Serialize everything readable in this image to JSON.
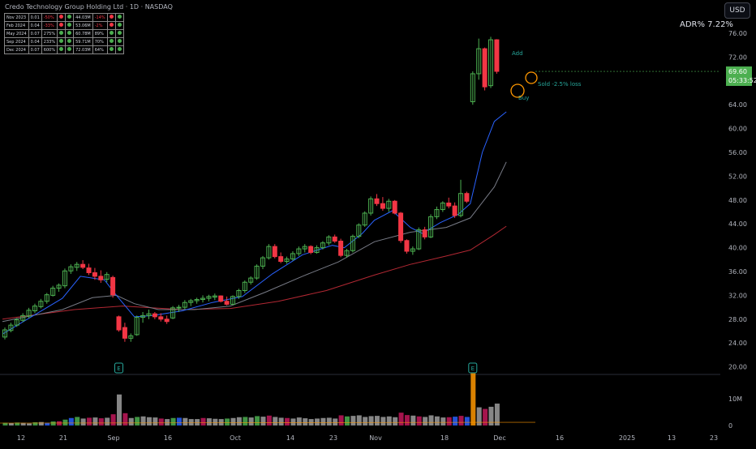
{
  "header": {
    "title": "Credo Technology Group Holding Ltd · 1D · NASDAQ",
    "currency_button": "USD",
    "adr_label": "ADR% 7.22%",
    "price_badge": {
      "price": "69.60",
      "countdown": "05:33:52"
    }
  },
  "earnings_table": [
    {
      "period": "Nov 2023",
      "eps": "0.01",
      "eps_chg": "-50%",
      "eps_dot": "red",
      "eps_dot2": "green",
      "rev": "44.03M",
      "rev_chg": "-14%",
      "rev_dot": "red",
      "rev_dot2": "green"
    },
    {
      "period": "Feb 2024",
      "eps": "0.04",
      "eps_chg": "-33%",
      "eps_dot": "red",
      "eps_dot2": "green",
      "rev": "53.06M",
      "rev_chg": "-2%",
      "rev_dot": "red",
      "rev_dot2": "green"
    },
    {
      "period": "May 2024",
      "eps": "0.07",
      "eps_chg": "275%",
      "eps_dot": "green",
      "eps_dot2": "green",
      "rev": "60.78M",
      "rev_chg": "89%",
      "rev_dot": "green",
      "rev_dot2": "green"
    },
    {
      "period": "Sep 2024",
      "eps": "0.04",
      "eps_chg": "233%",
      "eps_dot": "green",
      "eps_dot2": "green",
      "rev": "59.71M",
      "rev_chg": "70%",
      "rev_dot": "green",
      "rev_dot2": "green"
    },
    {
      "period": "Dec 2024",
      "eps": "0.07",
      "eps_chg": "600%",
      "eps_dot": "green",
      "eps_dot2": "green",
      "rev": "72.03M",
      "rev_chg": "64%",
      "rev_dot": "green",
      "rev_dot2": "green"
    }
  ],
  "annotations": {
    "add": "Add",
    "buy": "Buy",
    "sold": "Sold -2.5% loss",
    "earnings_marker": "E"
  },
  "colors": {
    "up": "#4caf50",
    "down": "#f23645",
    "ma_fast": "#2962ff",
    "ma_mid": "#787b86",
    "ma_slow": "#b22833",
    "note": "#26a69a",
    "circle": "#ff9800"
  },
  "chart_data": {
    "type": "candlestick",
    "y_axis": {
      "ticks": [
        "76.00",
        "72.00",
        "68.00",
        "64.00",
        "60.00",
        "56.00",
        "52.00",
        "48.00",
        "44.00",
        "40.00",
        "36.00",
        "32.00",
        "28.00",
        "24.00",
        "20.00"
      ],
      "range": [
        20,
        77
      ]
    },
    "volume_axis": {
      "ticks": [
        "10M",
        "0"
      ]
    },
    "x_axis": {
      "ticks": [
        "12",
        "21",
        "Sep",
        "16",
        "Oct",
        "14",
        "23",
        "Nov",
        "18",
        "Dec",
        "16",
        "2025",
        "13",
        "23"
      ]
    },
    "candles": [
      [
        25.0,
        26.6,
        24.6,
        26.2
      ],
      [
        26.1,
        27.4,
        25.8,
        27.0
      ],
      [
        27.0,
        28.2,
        26.7,
        27.9
      ],
      [
        27.8,
        29.0,
        27.5,
        28.6
      ],
      [
        28.5,
        29.9,
        28.2,
        29.5
      ],
      [
        29.4,
        30.6,
        29.0,
        30.2
      ],
      [
        30.1,
        31.4,
        29.8,
        31.0
      ],
      [
        31.0,
        32.4,
        30.6,
        32.1
      ],
      [
        32.0,
        33.6,
        31.8,
        33.2
      ],
      [
        33.2,
        34.0,
        32.6,
        33.7
      ],
      [
        33.6,
        36.5,
        33.2,
        36.1
      ],
      [
        36.1,
        37.2,
        35.6,
        36.8
      ],
      [
        36.7,
        37.6,
        36.1,
        37.2
      ],
      [
        37.2,
        37.9,
        36.4,
        36.7
      ],
      [
        36.6,
        37.3,
        35.4,
        35.8
      ],
      [
        35.8,
        36.6,
        34.6,
        35.2
      ],
      [
        35.2,
        36.2,
        34.1,
        34.6
      ],
      [
        34.7,
        35.9,
        34.2,
        35.5
      ],
      [
        35.0,
        35.3,
        31.6,
        32.1
      ],
      [
        28.4,
        28.6,
        25.9,
        26.2
      ],
      [
        26.6,
        27.4,
        24.2,
        24.8
      ],
      [
        24.8,
        25.6,
        24.2,
        25.2
      ],
      [
        25.4,
        28.6,
        25.2,
        28.3
      ],
      [
        28.3,
        29.2,
        27.4,
        28.6
      ],
      [
        28.6,
        29.6,
        28.0,
        28.9
      ],
      [
        28.9,
        29.2,
        28.0,
        28.4
      ],
      [
        28.4,
        29.0,
        27.6,
        28.0
      ],
      [
        28.0,
        28.6,
        27.2,
        27.6
      ],
      [
        28.2,
        30.2,
        28.0,
        29.9
      ],
      [
        29.9,
        30.4,
        29.2,
        30.0
      ],
      [
        30.0,
        31.2,
        29.7,
        30.8
      ],
      [
        30.8,
        31.4,
        30.2,
        31.1
      ],
      [
        31.1,
        31.6,
        30.6,
        31.3
      ],
      [
        31.3,
        32.0,
        30.8,
        31.5
      ],
      [
        31.5,
        32.1,
        31.0,
        31.8
      ],
      [
        31.7,
        32.3,
        31.2,
        31.9
      ],
      [
        31.9,
        32.0,
        30.8,
        31.0
      ],
      [
        31.0,
        31.8,
        30.3,
        30.5
      ],
      [
        30.5,
        32.0,
        30.4,
        31.8
      ],
      [
        31.8,
        33.1,
        31.4,
        32.8
      ],
      [
        32.8,
        34.5,
        32.4,
        34.2
      ],
      [
        34.2,
        35.2,
        33.8,
        34.9
      ],
      [
        34.9,
        37.2,
        34.6,
        36.9
      ],
      [
        36.9,
        38.6,
        36.4,
        38.3
      ],
      [
        38.3,
        40.6,
        38.0,
        40.2
      ],
      [
        40.2,
        40.6,
        38.2,
        38.5
      ],
      [
        38.5,
        39.2,
        37.4,
        37.7
      ],
      [
        37.7,
        38.5,
        37.3,
        38.1
      ],
      [
        38.1,
        39.4,
        37.8,
        39.0
      ],
      [
        39.0,
        40.2,
        38.6,
        39.8
      ],
      [
        39.8,
        40.6,
        39.2,
        40.2
      ],
      [
        40.2,
        40.4,
        38.9,
        39.2
      ],
      [
        39.2,
        40.4,
        39.0,
        40.0
      ],
      [
        40.0,
        41.1,
        39.7,
        40.8
      ],
      [
        40.8,
        42.1,
        40.4,
        41.8
      ],
      [
        41.8,
        42.2,
        40.8,
        41.1
      ],
      [
        41.1,
        41.5,
        38.4,
        38.7
      ],
      [
        38.7,
        39.8,
        38.3,
        39.5
      ],
      [
        39.5,
        42.2,
        39.2,
        41.9
      ],
      [
        41.9,
        44.1,
        41.6,
        43.8
      ],
      [
        43.8,
        46.1,
        43.5,
        45.8
      ],
      [
        45.8,
        48.6,
        45.4,
        48.2
      ],
      [
        48.2,
        49.0,
        47.0,
        47.4
      ],
      [
        47.4,
        48.5,
        46.2,
        46.6
      ],
      [
        46.6,
        48.2,
        46.0,
        47.8
      ],
      [
        47.8,
        48.0,
        45.6,
        45.8
      ],
      [
        45.8,
        46.0,
        40.8,
        41.2
      ],
      [
        41.2,
        41.4,
        39.0,
        39.4
      ],
      [
        39.4,
        40.2,
        38.8,
        39.8
      ],
      [
        39.8,
        43.4,
        39.6,
        43.0
      ],
      [
        43.0,
        43.5,
        41.4,
        41.8
      ],
      [
        41.8,
        45.6,
        41.6,
        45.2
      ],
      [
        45.2,
        46.9,
        44.8,
        46.4
      ],
      [
        46.4,
        47.8,
        46.0,
        47.5
      ],
      [
        47.5,
        48.4,
        46.6,
        47.0
      ],
      [
        47.0,
        47.6,
        45.0,
        45.4
      ],
      [
        45.4,
        51.4,
        45.1,
        49.1
      ],
      [
        49.1,
        49.4,
        47.5,
        47.8
      ],
      [
        64.5,
        69.6,
        64.0,
        69.2
      ],
      [
        69.2,
        75.1,
        68.2,
        73.4
      ],
      [
        73.4,
        73.6,
        66.4,
        67.0
      ],
      [
        67.2,
        75.4,
        66.8,
        74.9
      ],
      [
        74.9,
        75.0,
        69.2,
        69.6
      ]
    ],
    "volume": [
      [
        1.0,
        "green"
      ],
      [
        0.9,
        "gray"
      ],
      [
        1.1,
        "green"
      ],
      [
        1.0,
        "gray"
      ],
      [
        0.8,
        "gray"
      ],
      [
        1.2,
        "green"
      ],
      [
        1.3,
        "gray"
      ],
      [
        1.0,
        "blue"
      ],
      [
        1.5,
        "green"
      ],
      [
        1.6,
        "red"
      ],
      [
        2.2,
        "green"
      ],
      [
        2.8,
        "blue"
      ],
      [
        3.2,
        "green"
      ],
      [
        2.6,
        "gray"
      ],
      [
        2.9,
        "red"
      ],
      [
        3.0,
        "gray"
      ],
      [
        2.7,
        "red"
      ],
      [
        2.9,
        "gray"
      ],
      [
        4.2,
        "red"
      ],
      [
        11.6,
        "gray"
      ],
      [
        4.6,
        "red"
      ],
      [
        2.8,
        "gray"
      ],
      [
        3.2,
        "green"
      ],
      [
        3.4,
        "gray"
      ],
      [
        3.1,
        "gray"
      ],
      [
        3.0,
        "gray"
      ],
      [
        2.6,
        "red"
      ],
      [
        2.4,
        "gray"
      ],
      [
        2.8,
        "green"
      ],
      [
        2.9,
        "blue"
      ],
      [
        2.8,
        "gray"
      ],
      [
        2.4,
        "gray"
      ],
      [
        2.4,
        "gray"
      ],
      [
        2.8,
        "red"
      ],
      [
        2.7,
        "gray"
      ],
      [
        2.5,
        "gray"
      ],
      [
        2.4,
        "gray"
      ],
      [
        2.6,
        "green"
      ],
      [
        2.8,
        "gray"
      ],
      [
        3.1,
        "gray"
      ],
      [
        3.2,
        "green"
      ],
      [
        3.0,
        "gray"
      ],
      [
        3.5,
        "green"
      ],
      [
        3.3,
        "gray"
      ],
      [
        3.7,
        "red"
      ],
      [
        3.2,
        "gray"
      ],
      [
        2.9,
        "gray"
      ],
      [
        2.8,
        "red"
      ],
      [
        2.6,
        "gray"
      ],
      [
        3.0,
        "gray"
      ],
      [
        2.7,
        "gray"
      ],
      [
        2.4,
        "gray"
      ],
      [
        2.6,
        "gray"
      ],
      [
        2.8,
        "gray"
      ],
      [
        2.9,
        "gray"
      ],
      [
        2.6,
        "gray"
      ],
      [
        3.8,
        "red"
      ],
      [
        3.4,
        "green"
      ],
      [
        3.6,
        "gray"
      ],
      [
        3.8,
        "gray"
      ],
      [
        3.2,
        "gray"
      ],
      [
        3.5,
        "gray"
      ],
      [
        3.6,
        "gray"
      ],
      [
        3.2,
        "gray"
      ],
      [
        3.4,
        "gray"
      ],
      [
        3.1,
        "gray"
      ],
      [
        4.8,
        "red"
      ],
      [
        3.9,
        "red"
      ],
      [
        3.7,
        "gray"
      ],
      [
        3.4,
        "red"
      ],
      [
        3.2,
        "gray"
      ],
      [
        3.8,
        "gray"
      ],
      [
        3.4,
        "gray"
      ],
      [
        3.0,
        "gray"
      ],
      [
        3.1,
        "red"
      ],
      [
        3.3,
        "blue"
      ],
      [
        3.6,
        "red"
      ],
      [
        3.2,
        "blue"
      ],
      [
        19.5,
        "orange"
      ],
      [
        6.8,
        "gray"
      ],
      [
        6.2,
        "red"
      ],
      [
        7.0,
        "gray"
      ],
      [
        8.2,
        "gray"
      ]
    ],
    "volume_range": [
      0,
      20
    ],
    "ma_fast": [
      [
        0,
        25.5
      ],
      [
        10,
        31.5
      ],
      [
        13,
        35.2
      ],
      [
        17,
        34.6
      ],
      [
        19,
        32.0
      ],
      [
        22,
        28.4
      ],
      [
        25,
        28.6
      ],
      [
        30,
        29.4
      ],
      [
        35,
        30.8
      ],
      [
        40,
        31.8
      ],
      [
        45,
        35.6
      ],
      [
        50,
        38.8
      ],
      [
        55,
        40.4
      ],
      [
        57,
        40.0
      ],
      [
        60,
        42.4
      ],
      [
        62,
        44.6
      ],
      [
        65,
        46.2
      ],
      [
        68,
        43.4
      ],
      [
        70,
        42.4
      ],
      [
        73,
        44.2
      ],
      [
        76,
        45.6
      ],
      [
        78,
        47.4
      ],
      [
        80,
        56.0
      ],
      [
        82,
        61.2
      ],
      [
        84,
        62.8
      ]
    ],
    "ma_mid": [
      [
        0,
        27.6
      ],
      [
        10,
        29.6
      ],
      [
        15,
        31.6
      ],
      [
        19,
        32.0
      ],
      [
        22,
        30.6
      ],
      [
        26,
        29.6
      ],
      [
        32,
        29.6
      ],
      [
        38,
        30.2
      ],
      [
        44,
        32.6
      ],
      [
        50,
        35.2
      ],
      [
        56,
        37.6
      ],
      [
        62,
        41.0
      ],
      [
        68,
        42.6
      ],
      [
        74,
        43.4
      ],
      [
        78,
        45.0
      ],
      [
        82,
        50.2
      ],
      [
        84,
        54.4
      ]
    ],
    "ma_slow": [
      [
        0,
        28.0
      ],
      [
        12,
        29.6
      ],
      [
        20,
        30.2
      ],
      [
        30,
        29.6
      ],
      [
        38,
        29.8
      ],
      [
        46,
        31.0
      ],
      [
        54,
        32.8
      ],
      [
        62,
        35.4
      ],
      [
        68,
        37.2
      ],
      [
        74,
        38.6
      ],
      [
        78,
        39.6
      ],
      [
        82,
        42.2
      ],
      [
        84,
        43.6
      ]
    ],
    "earnings_markers": [
      19,
      78
    ]
  }
}
